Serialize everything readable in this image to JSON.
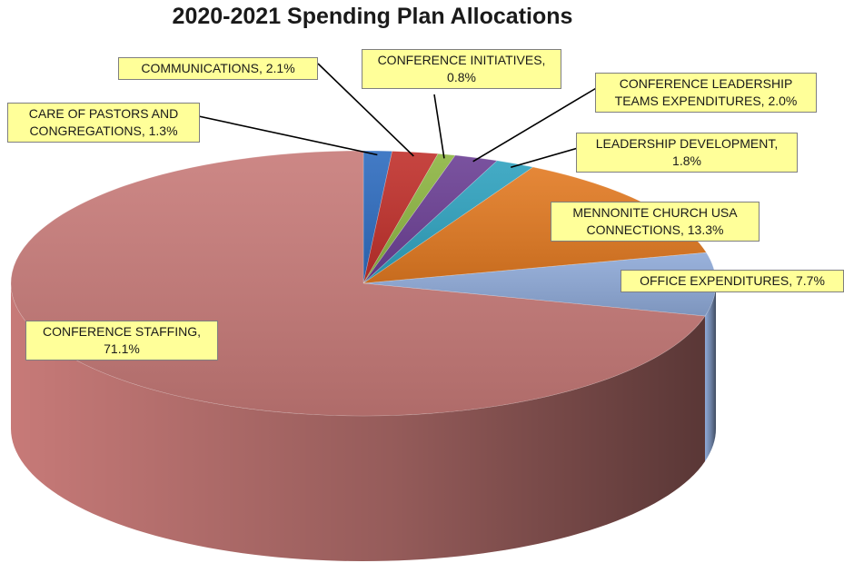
{
  "chart_data": {
    "type": "pie",
    "title": "2020-2021 Spending Plan Allocations",
    "slices": [
      {
        "label": "CARE OF PASTORS AND CONGREGATIONS",
        "value": 1.3,
        "value_label": "1.3%",
        "color": "#2e6cbf"
      },
      {
        "label": "COMMUNICATIONS",
        "value": 2.1,
        "value_label": "2.1%",
        "color": "#c0302b"
      },
      {
        "label": "CONFERENCE INITIATIVES",
        "value": 0.8,
        "value_label": "0.8%",
        "color": "#8db542"
      },
      {
        "label": "CONFERENCE LEADERSHIP TEAMS EXPENDITURES",
        "value": 2.0,
        "value_label": "2.0%",
        "color": "#6b3f94"
      },
      {
        "label": "LEADERSHIP DEVELOPMENT",
        "value": 1.8,
        "value_label": "1.8%",
        "color": "#2fa2bf"
      },
      {
        "label": "MENNONITE CHURCH USA CONNECTIONS",
        "value": 13.3,
        "value_label": "13.3%",
        "color": "#e27a22"
      },
      {
        "label": "OFFICE EXPENDITURES",
        "value": 7.7,
        "value_label": "7.7%",
        "color": "#8ea9d7"
      },
      {
        "label": "CONFERENCE STAFFING",
        "value": 71.1,
        "value_label": "71.1%",
        "color": "#c77a78"
      }
    ],
    "legend": "none",
    "label_style": "callout"
  }
}
